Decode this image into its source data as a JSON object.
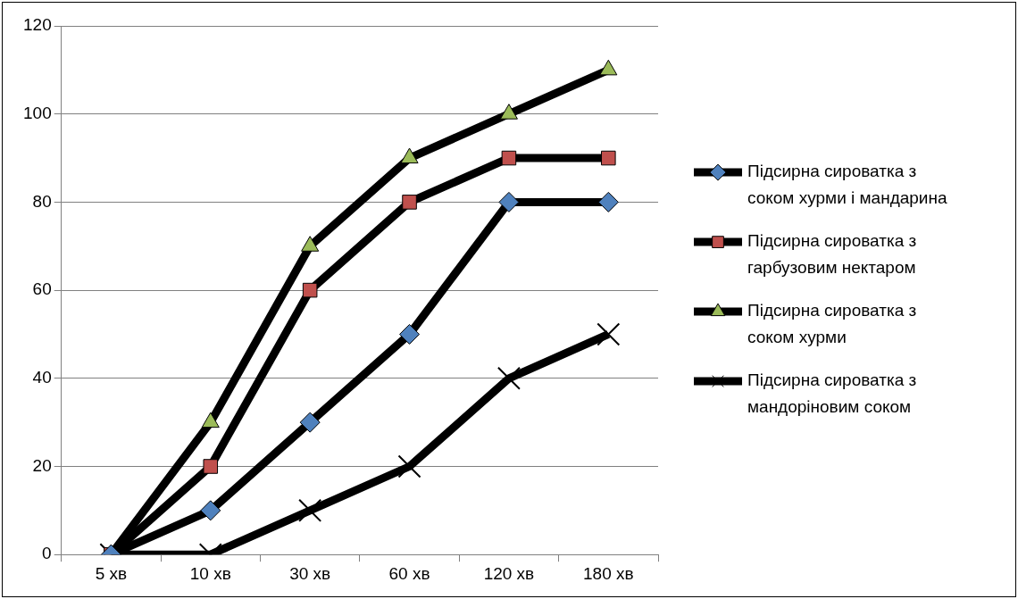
{
  "chart_data": {
    "type": "line",
    "categories": [
      "5 хв",
      "10 хв",
      "30 хв",
      "60 хв",
      "120 хв",
      "180 хв"
    ],
    "series": [
      {
        "name": "Підсирна сироватка з соком хурми і мандарина",
        "color": "#4f81bd",
        "marker": "diamond",
        "values": [
          0,
          10,
          30,
          50,
          80,
          80
        ]
      },
      {
        "name": "Підсирна сироватка з гарбузовим нектаром",
        "color": "#c0504d",
        "marker": "square",
        "values": [
          0,
          20,
          60,
          80,
          90,
          90
        ]
      },
      {
        "name": "Підсирна сироватка з соком хурми",
        "color": "#9bbb59",
        "marker": "triangle",
        "values": [
          0,
          30,
          70,
          90,
          100,
          110
        ]
      },
      {
        "name": "Підсирна сироватка з мандоріновим соком",
        "color": "#000000",
        "marker": "cross",
        "values": [
          0,
          0,
          10,
          20,
          40,
          50
        ]
      }
    ],
    "ylim": [
      0,
      120
    ],
    "yticks": [
      0,
      20,
      40,
      60,
      80,
      100,
      120
    ],
    "grid": "y",
    "legend": "right",
    "line_style": "solid"
  }
}
